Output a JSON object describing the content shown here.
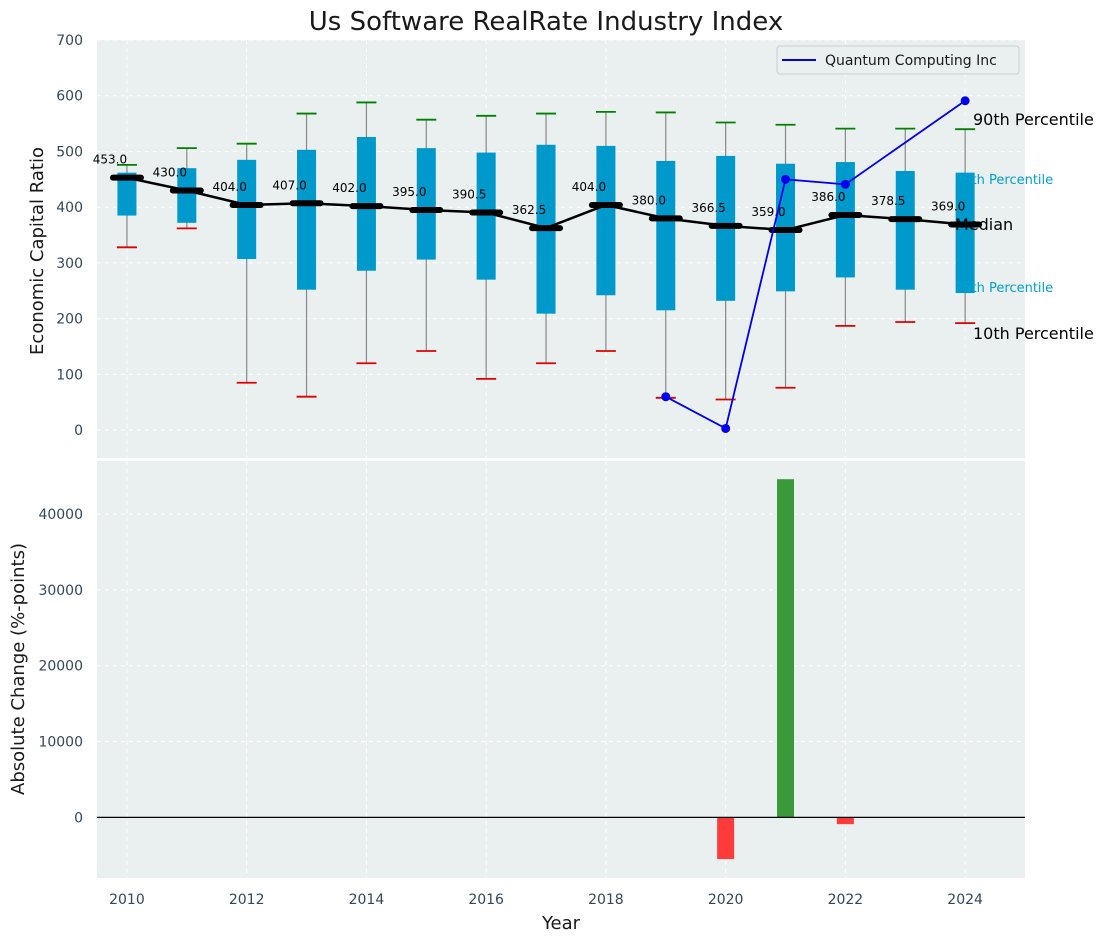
{
  "chart_data": [
    {
      "type": "box",
      "title": "Us Software RealRate Industry Index",
      "ylabel": "Economic Capital Ratio",
      "xlim": [
        2009.5,
        2025
      ],
      "ylim": [
        -50,
        700
      ],
      "yticks": [
        0,
        100,
        200,
        300,
        400,
        500,
        600,
        700
      ],
      "grid": true,
      "legend_position": "top-right",
      "years": [
        2010,
        2011,
        2012,
        2013,
        2014,
        2015,
        2016,
        2017,
        2018,
        2019,
        2020,
        2021,
        2022,
        2023,
        2024
      ],
      "p10": [
        328,
        362,
        85,
        60,
        120,
        142,
        92,
        120,
        142,
        58,
        55,
        76,
        187,
        194,
        192
      ],
      "p25": [
        385,
        372,
        307,
        252,
        286,
        306,
        270,
        209,
        242,
        215,
        232,
        249,
        274,
        252,
        246
      ],
      "median": [
        453.0,
        430.0,
        404.0,
        407.0,
        402.0,
        395.0,
        390.5,
        362.5,
        404.0,
        380.0,
        366.5,
        359.0,
        386.0,
        378.5,
        369.0
      ],
      "median_labels": [
        "453.0",
        "430.0",
        "404.0",
        "407.0",
        "402.0",
        "395.0",
        "390.5",
        "362.5",
        "404.0",
        "380.0",
        "366.5",
        "359.0",
        "386.0",
        "378.5",
        "369.0"
      ],
      "p75": [
        462,
        470,
        485,
        503,
        526,
        506,
        498,
        512,
        510,
        483,
        492,
        478,
        481,
        465,
        462
      ],
      "p90": [
        476,
        506,
        514,
        568,
        588,
        557,
        564,
        568,
        571,
        570,
        552,
        548,
        541,
        541,
        540
      ],
      "series": [
        {
          "name": "Quantum Computing Inc",
          "color": "#0000ee",
          "x": [
            2019,
            2020,
            2021,
            2022,
            2024
          ],
          "values": [
            60,
            3,
            450,
            441,
            591
          ]
        }
      ],
      "percentile_labels": {
        "p90": "90th Percentile",
        "p75": "75th Percentile",
        "median": "Median",
        "p25": "25th Percentile",
        "p10": "10th Percentile"
      },
      "colors": {
        "box": "#0099cc",
        "median_line": "#000000",
        "p90_cap": "#008000",
        "p10_cap": "#e00000",
        "whisker": "#888888",
        "panel_bg": "#eaeff0"
      }
    },
    {
      "type": "bar",
      "ylabel": "Absolute Change (%-points)",
      "xlabel": "Year",
      "xlim": [
        2009.5,
        2025
      ],
      "ylim": [
        -8000,
        47000
      ],
      "yticks": [
        0,
        10000,
        20000,
        30000,
        40000
      ],
      "xticks": [
        2010,
        2012,
        2014,
        2016,
        2018,
        2020,
        2022,
        2024
      ],
      "grid": true,
      "x": [
        2020,
        2021,
        2022
      ],
      "values": [
        -5500,
        44600,
        -900
      ],
      "colors": {
        "positive": "#3a9a3a",
        "negative": "#ff3a3a",
        "zero_line": "#000000"
      }
    }
  ]
}
